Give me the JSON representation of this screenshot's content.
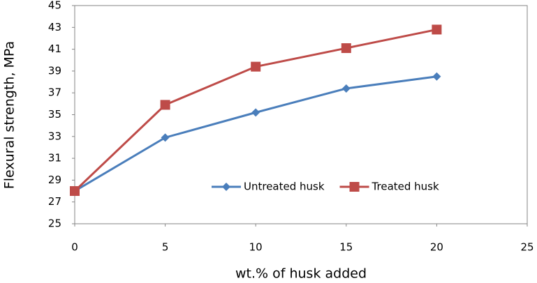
{
  "chart_data": {
    "type": "line",
    "x_label": "wt.% of husk added",
    "y_label": "Flexural strength, MPa",
    "x": [
      0,
      5,
      10,
      15,
      20
    ],
    "series": [
      {
        "name": "Untreated husk",
        "color": "#4a7ebb",
        "marker": "diamond",
        "values": [
          28,
          32.9,
          35.2,
          37.4,
          38.5
        ]
      },
      {
        "name": "Treated husk",
        "color": "#be4b48",
        "marker": "square",
        "values": [
          28,
          35.9,
          39.4,
          41.1,
          42.8
        ]
      }
    ],
    "xlim": [
      0,
      25
    ],
    "xticks": [
      0,
      5,
      10,
      15,
      20,
      25
    ],
    "ylim": [
      25,
      45
    ],
    "yticks": [
      25,
      27,
      29,
      31,
      33,
      35,
      37,
      39,
      41,
      43,
      45
    ],
    "grid": false,
    "legend": "lower right"
  }
}
